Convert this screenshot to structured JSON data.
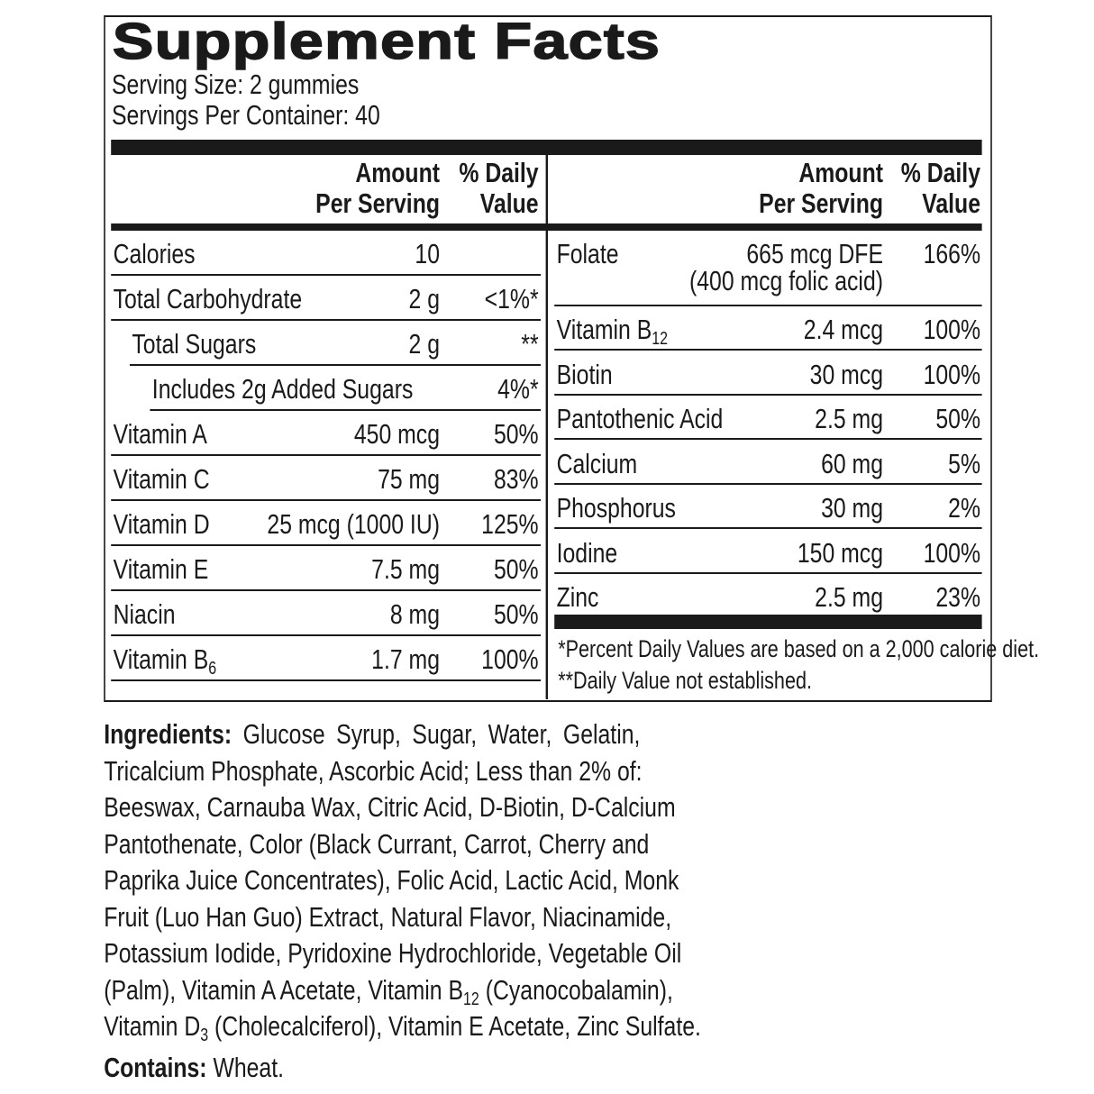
{
  "title": "Supplement Facts",
  "serving_size": "Serving Size:  2 gummies",
  "servings_per_container": "Servings Per Container: 40",
  "headers": {
    "amount": "Amount\nPer Serving",
    "dv": "% Daily\nValue"
  },
  "left_rows": [
    {
      "label": "Calories",
      "amount": "10",
      "dv": "",
      "indent": 0
    },
    {
      "label": "Total Carbohydrate",
      "amount": "2 g",
      "dv": "<1%*",
      "indent": 0
    },
    {
      "label": "Total Sugars",
      "amount": "2 g",
      "dv": "**",
      "indent": 1
    },
    {
      "label": "Includes 2g Added Sugars",
      "amount": "",
      "dv": "4%*",
      "indent": 2
    },
    {
      "label": "Vitamin A",
      "amount": "450 mcg",
      "dv": "50%",
      "indent": 0
    },
    {
      "label": "Vitamin C",
      "amount": "75 mg",
      "dv": "83%",
      "indent": 0
    },
    {
      "label": "Vitamin D",
      "amount": "25 mcg (1000 IU)",
      "dv": "125%",
      "indent": 0
    },
    {
      "label": "Vitamin E",
      "amount": "7.5 mg",
      "dv": "50%",
      "indent": 0
    },
    {
      "label": "Niacin",
      "amount": "8 mg",
      "dv": "50%",
      "indent": 0
    },
    {
      "label": "Vitamin B",
      "sub": "6",
      "amount": "1.7 mg",
      "dv": "100%",
      "indent": 0
    }
  ],
  "right_rows": [
    {
      "label": "Folate",
      "amount": "665 mcg DFE",
      "amount2": "(400 mcg folic acid)",
      "dv": "166%"
    },
    {
      "label": "Vitamin B",
      "sub": "12",
      "amount": "2.4 mcg",
      "dv": "100%"
    },
    {
      "label": "Biotin",
      "amount": "30 mcg",
      "dv": "100%"
    },
    {
      "label": "Pantothenic Acid",
      "amount": "2.5 mg",
      "dv": "50%"
    },
    {
      "label": "Calcium",
      "amount": "60 mg",
      "dv": "5%"
    },
    {
      "label": "Phosphorus",
      "amount": "30 mg",
      "dv": "2%"
    },
    {
      "label": "Iodine",
      "amount": "150 mcg",
      "dv": "100%"
    },
    {
      "label": "Zinc",
      "amount": "2.5 mg",
      "dv": "23%"
    }
  ],
  "footnotes": [
    "*Percent Daily Values are based on a 2,000 calorie diet.",
    "**Daily Value not established."
  ],
  "ingredients_label": "Ingredients:",
  "ingredients_lines": [
    [
      {
        "t": " Glucose Syrup, Sugar, Water, Gelatin,"
      }
    ],
    [
      {
        "t": "Tricalcium Phosphate, Ascorbic Acid; Less than 2% of:"
      }
    ],
    [
      {
        "t": "Beeswax, Carnauba Wax, Citric Acid, D-Biotin, D-Calcium"
      }
    ],
    [
      {
        "t": "Pantothenate, Color (Black Currant, Carrot, Cherry and"
      }
    ],
    [
      {
        "t": "Paprika Juice Concentrates), Folic Acid, Lactic Acid, Monk"
      }
    ],
    [
      {
        "t": "Fruit (Luo Han Guo) Extract, Natural Flavor, Niacinamide,"
      }
    ],
    [
      {
        "t": "Potassium Iodide, Pyridoxine Hydrochloride, Vegetable Oil"
      }
    ],
    [
      {
        "t": "(Palm), Vitamin A Acetate, Vitamin B"
      },
      {
        "sub": "12"
      },
      {
        "t": " (Cyanocobalamin),"
      }
    ],
    [
      {
        "t": "Vitamin D"
      },
      {
        "sub": "3"
      },
      {
        "t": " (Cholecalciferol), Vitamin E Acetate, Zinc Sulfate."
      }
    ]
  ],
  "contains_label": "Contains:",
  "contains_value": " Wheat."
}
